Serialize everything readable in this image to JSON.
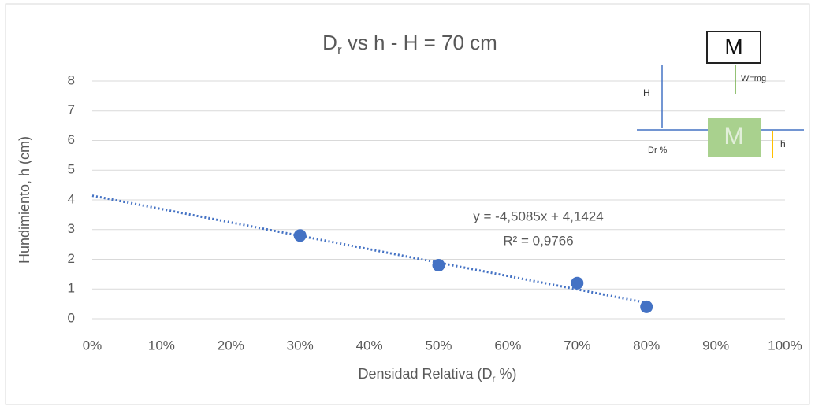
{
  "chart_data": {
    "type": "scatter",
    "title": [
      "D",
      "r",
      " vs h - H = 70 cm"
    ],
    "x_label": [
      "Densidad Relativa (D",
      "r",
      " %)"
    ],
    "y_label": "Hundimiento, h (cm)",
    "x": [
      30,
      50,
      70,
      80
    ],
    "values": [
      2.8,
      1.8,
      1.2,
      0.4
    ],
    "color": "#4472c4",
    "xlim": [
      0,
      100
    ],
    "xticks": [
      {
        "value": 0,
        "label": "0%"
      },
      {
        "value": 10,
        "label": "10%"
      },
      {
        "value": 20,
        "label": "20%"
      },
      {
        "value": 30,
        "label": "30%"
      },
      {
        "value": 40,
        "label": "40%"
      },
      {
        "value": 50,
        "label": "50%"
      },
      {
        "value": 60,
        "label": "60%"
      },
      {
        "value": 70,
        "label": "70%"
      },
      {
        "value": 80,
        "label": "80%"
      },
      {
        "value": 90,
        "label": "90%"
      },
      {
        "value": 100,
        "label": "100%"
      }
    ],
    "ylim": [
      0,
      8
    ],
    "yticks": [
      0,
      1,
      2,
      3,
      4,
      5,
      6,
      7,
      8
    ],
    "grid": true,
    "trendline": {
      "slope": -4.5085,
      "intercept": 4.1424,
      "xlim": [
        0,
        80
      ],
      "equation": "y = -4,5085x + 4,1424",
      "r2": "R² = 0,9766"
    },
    "inset": {
      "mass_top": "M",
      "weight": "W=mg",
      "height": "H",
      "mass_bottom": "M",
      "sink": "h",
      "density": "Dr %"
    }
  }
}
